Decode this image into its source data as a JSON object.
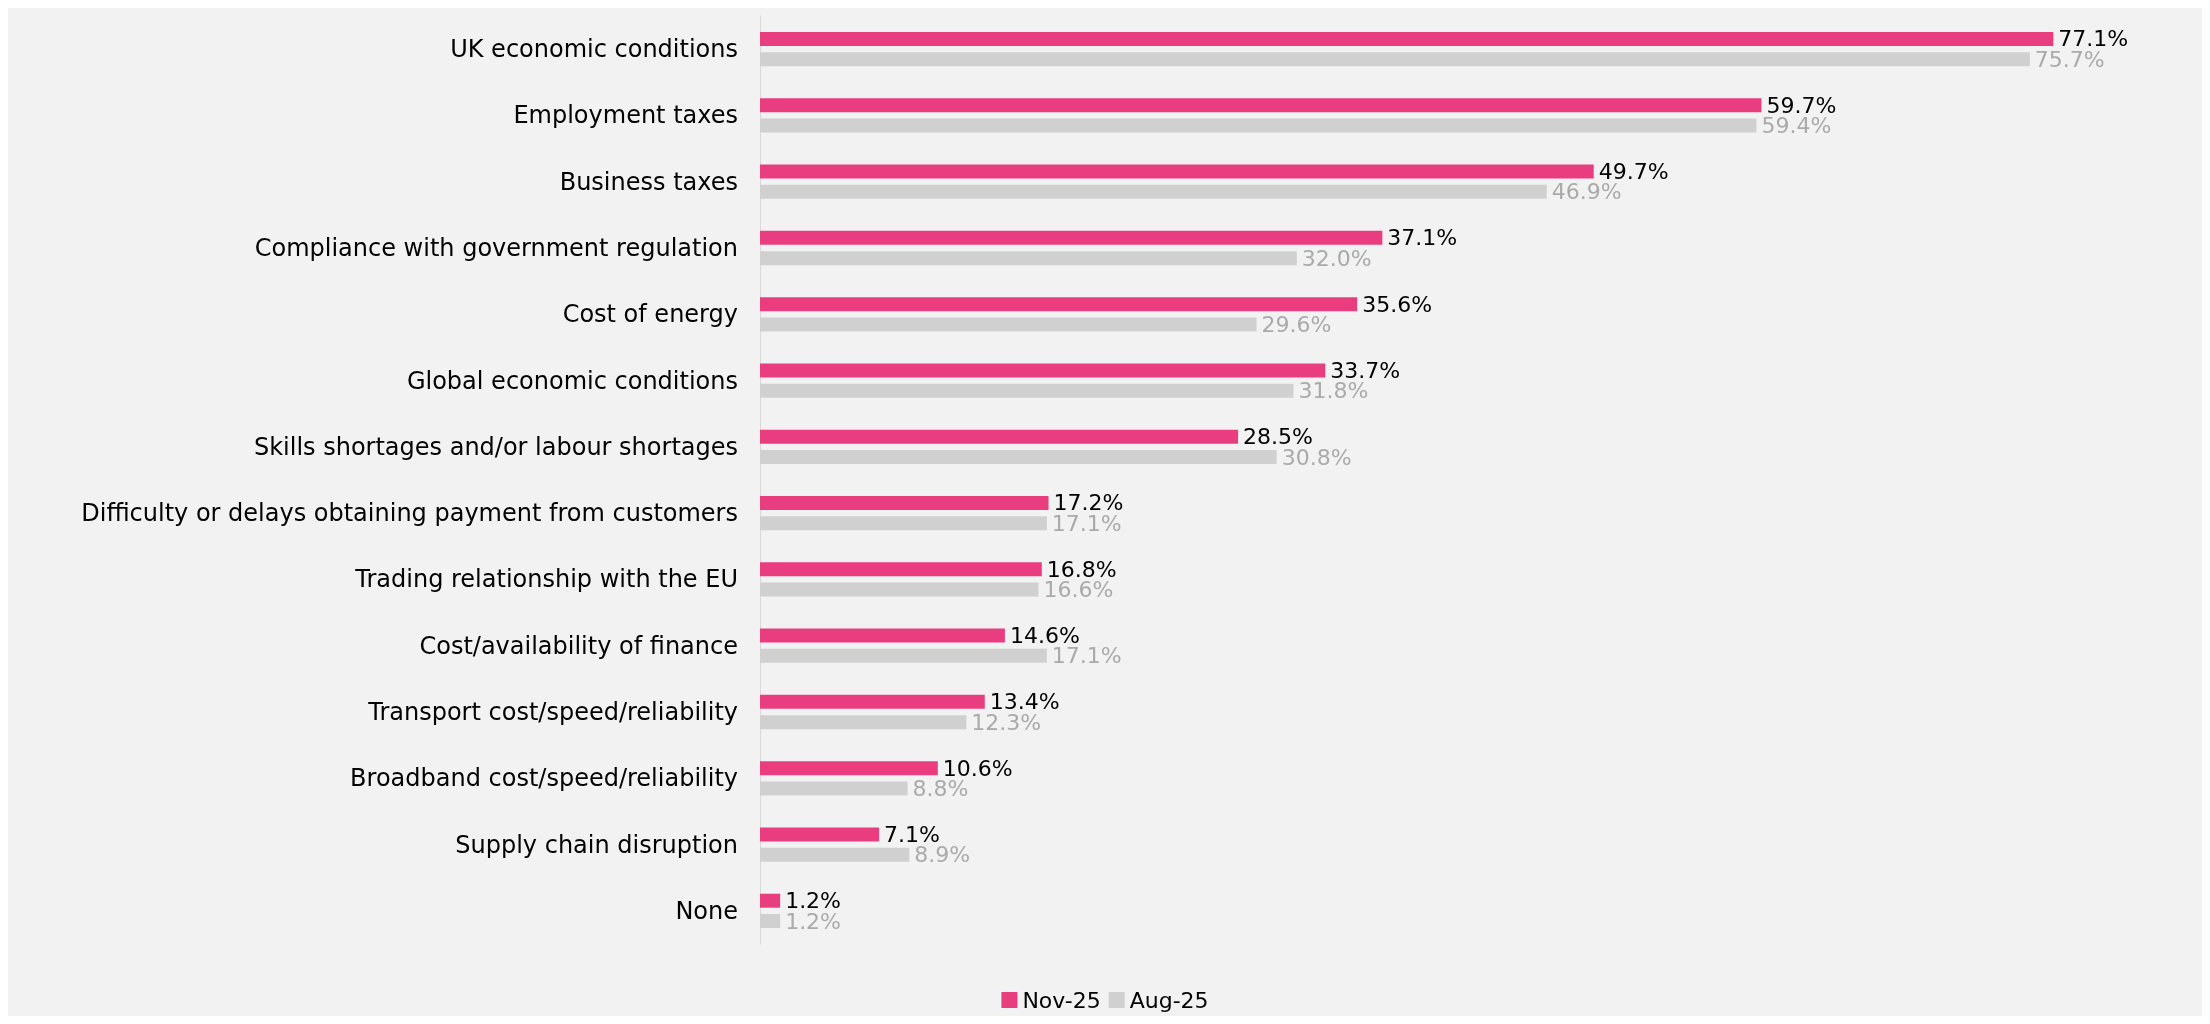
{
  "chart_data": {
    "type": "bar",
    "orientation": "horizontal",
    "categories": [
      "UK economic conditions",
      "Employment taxes",
      "Business taxes",
      "Compliance with government regulation",
      "Cost of energy",
      "Global economic conditions",
      "Skills shortages and/or labour shortages",
      "Difficulty or delays obtaining payment from customers",
      "Trading relationship with the EU",
      "Cost/availability of finance",
      "Transport cost/speed/reliability",
      "Broadband cost/speed/reliability",
      "Supply chain disruption",
      "None"
    ],
    "series": [
      {
        "name": "Nov-25",
        "color": "#e83e80",
        "values": [
          77.1,
          59.7,
          49.7,
          37.1,
          35.6,
          33.7,
          28.5,
          17.2,
          16.8,
          14.6,
          13.4,
          10.6,
          7.1,
          1.2
        ],
        "value_labels": [
          "77.1%",
          "59.7%",
          "49.7%",
          "37.1%",
          "35.6%",
          "33.7%",
          "28.5%",
          "17.2%",
          "16.8%",
          "14.6%",
          "13.4%",
          "10.6%",
          "7.1%",
          "1.2%"
        ]
      },
      {
        "name": "Aug-25",
        "color": "#d0d0d0",
        "values": [
          75.7,
          59.4,
          46.9,
          32.0,
          29.6,
          31.8,
          30.8,
          17.1,
          16.6,
          17.1,
          12.3,
          8.8,
          8.9,
          1.2
        ],
        "value_labels": [
          "75.7%",
          "59.4%",
          "46.9%",
          "32.0%",
          "29.6%",
          "31.8%",
          "30.8%",
          "17.1%",
          "16.6%",
          "17.1%",
          "12.3%",
          "8.8%",
          "8.9%",
          "1.2%"
        ]
      }
    ],
    "tick_labels": "y",
    "grid": false,
    "legend": "bottom"
  }
}
